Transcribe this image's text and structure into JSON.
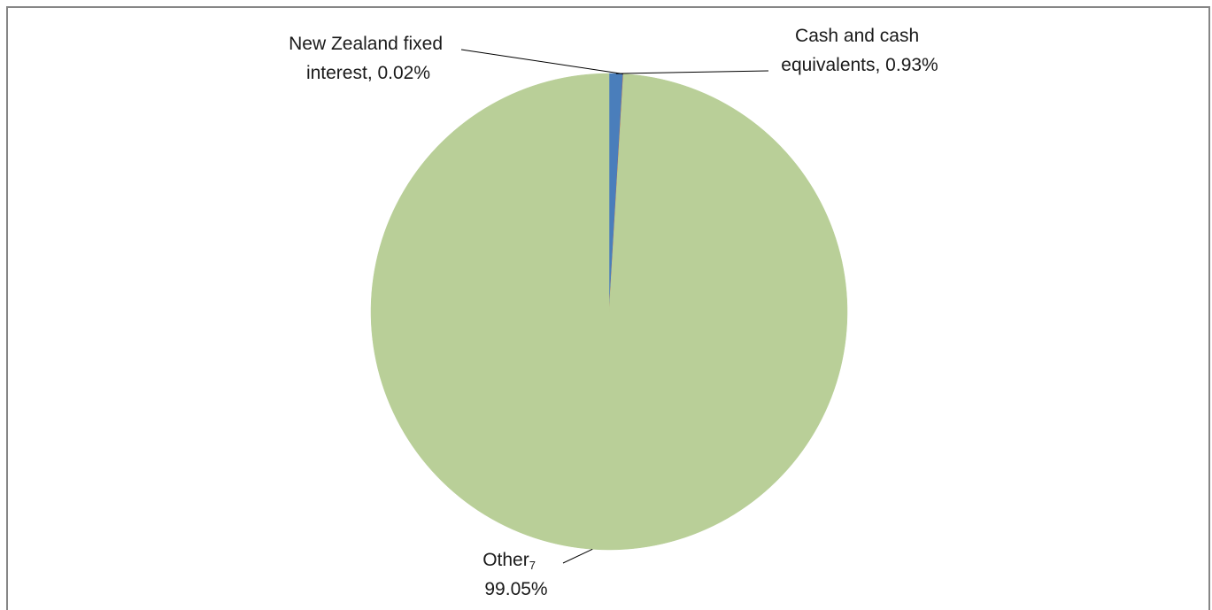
{
  "chart_data": {
    "type": "pie",
    "slices": [
      {
        "label": "Cash and cash equivalents",
        "value": 0.93,
        "value_text": "0.93%",
        "label_lines": [
          "Cash and cash",
          "equivalents, 0.93%"
        ],
        "color": "#4a7ebb"
      },
      {
        "label": "New Zealand fixed interest",
        "value": 0.02,
        "value_text": "0.02%",
        "label_lines": [
          "New Zealand fixed",
          "interest, 0.02%"
        ],
        "color": "#c0504d"
      },
      {
        "label": "Other7",
        "value": 99.05,
        "value_text": "99.05%",
        "label_lines": [
          "Other",
          "99.05%"
        ],
        "label_superscript": "7",
        "color": "#b9cf98"
      }
    ],
    "start_angle": "top",
    "direction": "clockwise",
    "legend": "none"
  }
}
